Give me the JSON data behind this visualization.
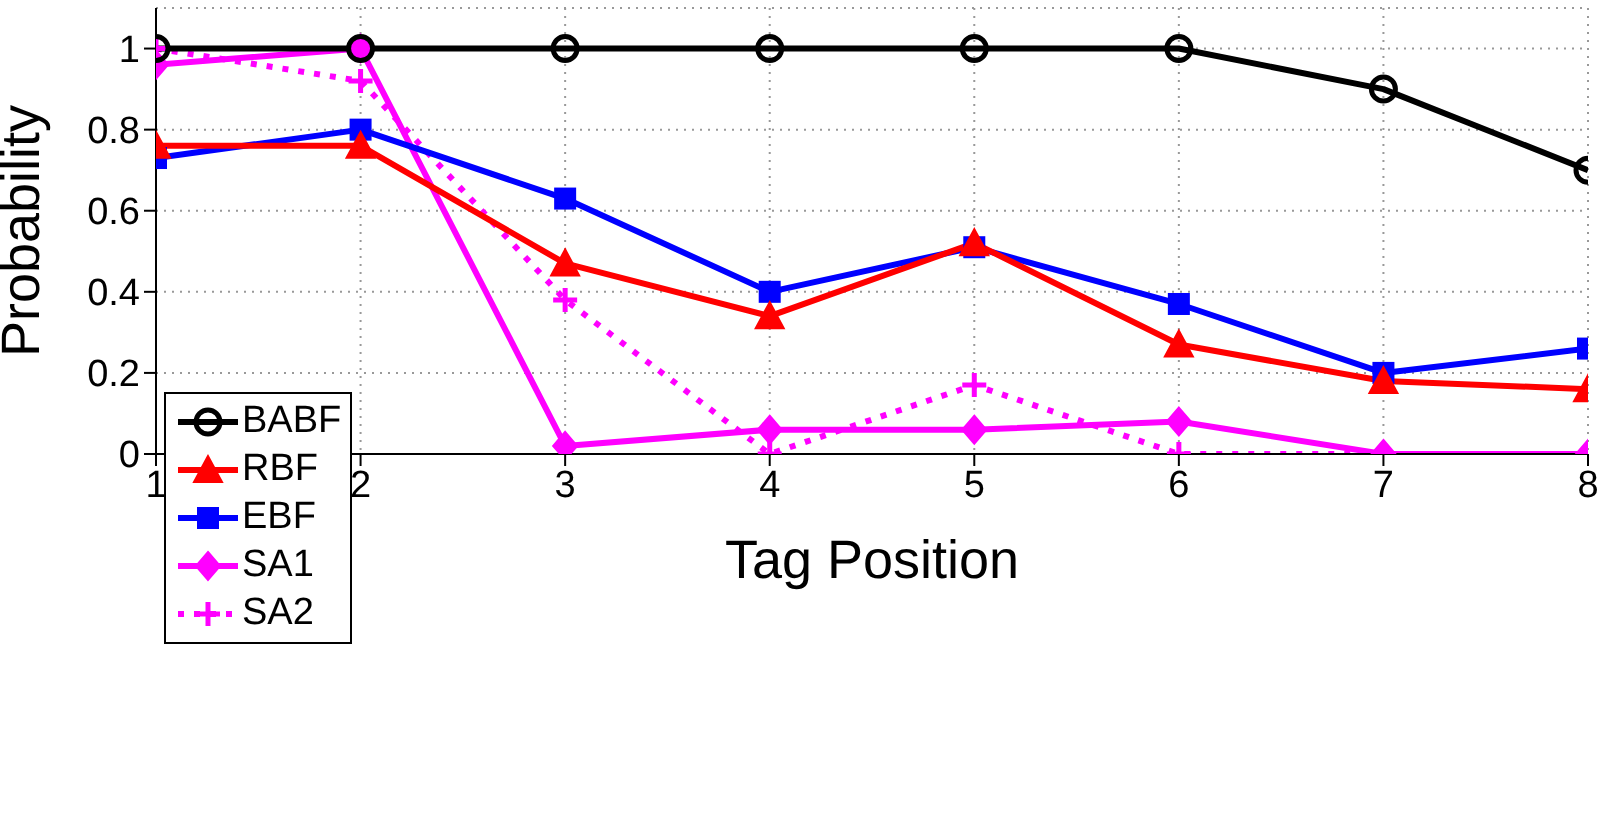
{
  "chart_data": {
    "type": "line",
    "xlabel": "Tag Position",
    "ylabel": "Probability",
    "x": [
      1,
      2,
      3,
      4,
      5,
      6,
      7,
      8
    ],
    "xlim": [
      1,
      8
    ],
    "xticks": [
      1,
      2,
      3,
      4,
      5,
      6,
      7,
      8
    ],
    "ylim": [
      0,
      1.1
    ],
    "yticks": [
      0,
      0.2,
      0.4,
      0.6,
      0.8,
      1
    ],
    "grid": true,
    "legend": "bottom left",
    "series": [
      {
        "name": "BABF",
        "color": "#000000",
        "marker": "circle",
        "line_style": "solid",
        "values": [
          1,
          1,
          1,
          1,
          1,
          1,
          0.9,
          0.7
        ]
      },
      {
        "name": "RBF",
        "color": "#ff0000",
        "marker": "triangle",
        "line_style": "solid",
        "values": [
          0.76,
          0.76,
          0.47,
          0.34,
          0.52,
          0.27,
          0.18,
          0.16
        ]
      },
      {
        "name": "EBF",
        "color": "#0000ff",
        "marker": "square",
        "line_style": "solid",
        "values": [
          0.73,
          0.8,
          0.63,
          0.4,
          0.51,
          0.37,
          0.2,
          0.26
        ]
      },
      {
        "name": "SA1",
        "color": "#ff00ff",
        "marker": "diamond",
        "line_style": "solid",
        "values": [
          0.96,
          1,
          0.02,
          0.06,
          0.06,
          0.08,
          0,
          0
        ]
      },
      {
        "name": "SA2",
        "color": "#ff00ff",
        "marker": "cross",
        "line_style": "dotted",
        "values": [
          1,
          0.92,
          0.38,
          0,
          0.17,
          0,
          0,
          0
        ]
      }
    ]
  }
}
